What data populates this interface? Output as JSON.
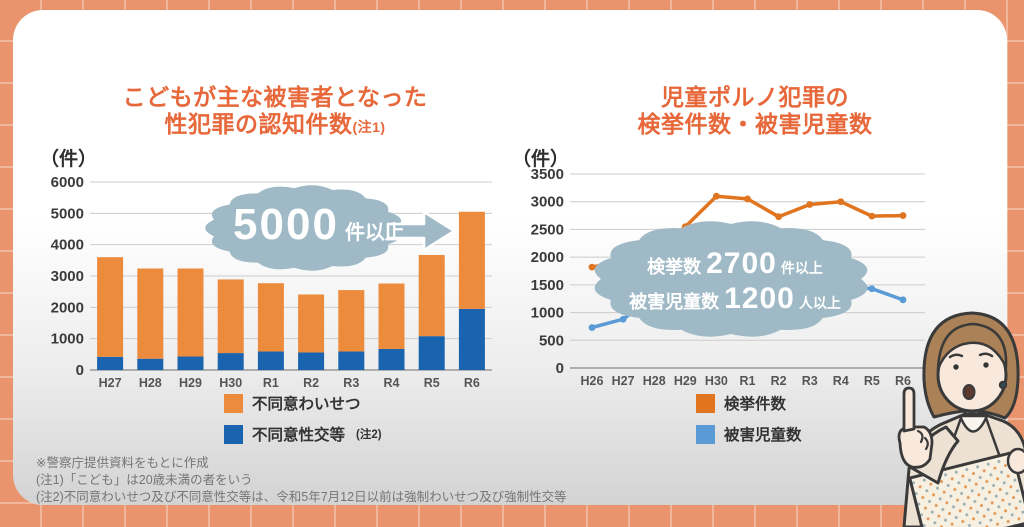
{
  "colors": {
    "background": "#e9946c",
    "accent_title": "#e7683a",
    "bar_waisetsu": "#ed8b3d",
    "bar_seiko": "#1a63ae",
    "line_kenkyo": "#e0741f",
    "line_higai": "#5b9bd5",
    "cloud": "#9fbac6",
    "grid_line": "#cccccc"
  },
  "left_chart": {
    "title_line1": "こどもが主な被害者となった",
    "title_line2": "性犯罪の認知件数",
    "title_note": "(注1)",
    "unit_label": "（件）",
    "callout": {
      "big": "5000",
      "suffix": "件以上"
    },
    "legend": [
      {
        "label": "不同意わいせつ",
        "note": "",
        "color": "#ed8b3d"
      },
      {
        "label": "不同意性交等",
        "note": "(注2)",
        "color": "#1a63ae"
      }
    ]
  },
  "right_chart": {
    "title_line1": "児童ポルノ犯罪の",
    "title_line2": "検挙件数・被害児童数",
    "unit_label": "（件）",
    "callout": {
      "line1": {
        "label": "検挙数",
        "num": "2700",
        "suffix": "件以上"
      },
      "line2": {
        "label": "被害児童数",
        "num": "1200",
        "suffix": "人以上"
      }
    },
    "legend": [
      {
        "label": "検挙件数",
        "color": "#e0741f"
      },
      {
        "label": "被害児童数",
        "color": "#5b9bd5"
      }
    ]
  },
  "footnotes": [
    "※警察庁提供資料をもとに作成",
    "(注1)「こども」は20歳未満の者をいう",
    "(注2)不同意わいせつ及び不同意性交等は、令和5年7月12日以前は強制わいせつ及び強制性交等"
  ],
  "chart_data": [
    {
      "type": "bar",
      "stacked": true,
      "title": "こどもが主な被害者となった性犯罪の認知件数",
      "categories": [
        "H27",
        "H28",
        "H29",
        "H30",
        "R1",
        "R2",
        "R3",
        "R4",
        "R5",
        "R6"
      ],
      "series": [
        {
          "name": "不同意性交等",
          "color": "#1a63ae",
          "values": [
            420,
            360,
            430,
            540,
            590,
            560,
            590,
            670,
            1080,
            1950
          ]
        },
        {
          "name": "不同意わいせつ",
          "color": "#ed8b3d",
          "values": [
            3180,
            2880,
            2810,
            2350,
            2180,
            1850,
            1960,
            2090,
            2590,
            3100
          ]
        }
      ],
      "totals": [
        3600,
        3240,
        3240,
        2890,
        2770,
        2410,
        2550,
        2760,
        3670,
        5050
      ],
      "annotation": "5000件以上",
      "ylabel": "（件）",
      "ylim": [
        0,
        6000
      ],
      "ytick_step": 1000,
      "grid": true,
      "legend_position": "bottom"
    },
    {
      "type": "line",
      "title": "児童ポルノ犯罪の検挙件数・被害児童数",
      "categories": [
        "H26",
        "H27",
        "H28",
        "H29",
        "H30",
        "R1",
        "R2",
        "R3",
        "R4",
        "R5",
        "R6"
      ],
      "series": [
        {
          "name": "検挙件数",
          "color": "#e0741f",
          "values": [
            1820,
            1930,
            2100,
            2550,
            3100,
            3050,
            2730,
            2950,
            3000,
            2740,
            2750
          ]
        },
        {
          "name": "被害児童数",
          "color": "#5b9bd5",
          "values": [
            730,
            880,
            1300,
            1220,
            1280,
            1560,
            1320,
            1460,
            1490,
            1430,
            1230
          ]
        }
      ],
      "annotation": "検挙数2700件以上 被害児童数1200人以上",
      "ylabel": "（件）",
      "ylim": [
        0,
        3500
      ],
      "ytick_step": 500,
      "grid": true,
      "legend_position": "bottom"
    }
  ]
}
